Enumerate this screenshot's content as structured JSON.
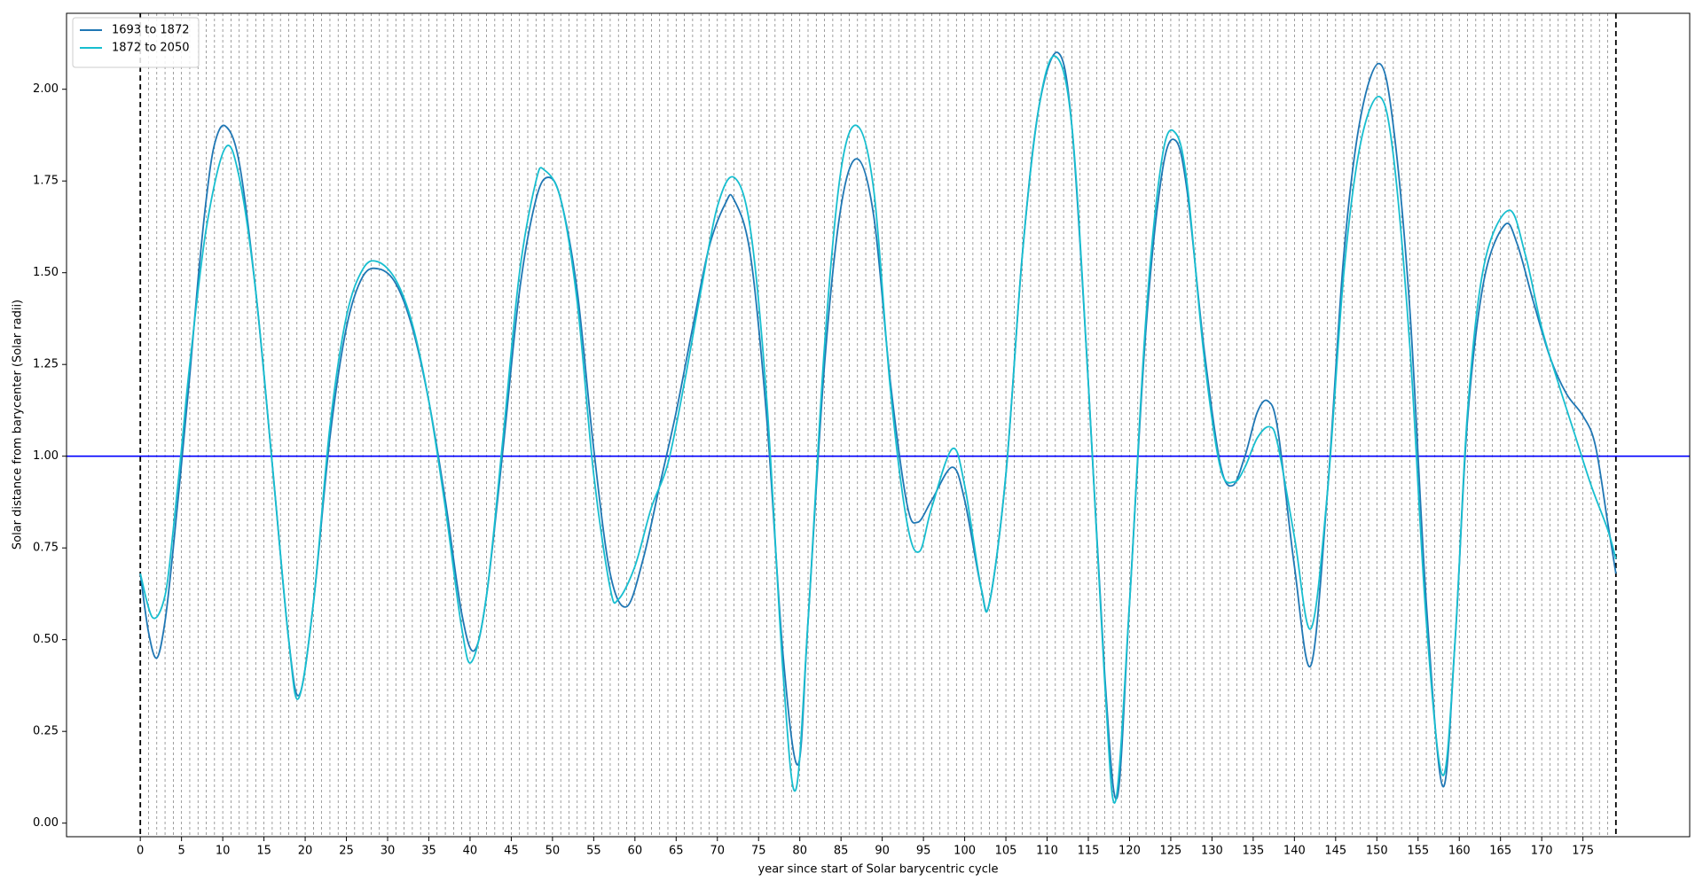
{
  "chart_data": {
    "type": "line",
    "xlabel": "year since start of Solar barycentric cycle",
    "ylabel": "Solar distance from barycenter (Solar radii)",
    "xlim": [
      -8.95,
      187.95
    ],
    "ylim": [
      -0.037,
      2.207
    ],
    "xticks": [
      0,
      5,
      10,
      15,
      20,
      25,
      30,
      35,
      40,
      45,
      50,
      55,
      60,
      65,
      70,
      75,
      80,
      85,
      90,
      95,
      100,
      105,
      110,
      115,
      120,
      125,
      130,
      135,
      140,
      145,
      150,
      155,
      160,
      165,
      170,
      175
    ],
    "yticks": [
      {
        "value": 0,
        "label": "0.00"
      },
      0.25,
      {
        "value": 0.5,
        "label": "0.50"
      },
      0.75,
      {
        "value": 1,
        "label": "1.00"
      },
      1.25,
      {
        "value": 1.5,
        "label": "1.50"
      },
      1.75,
      {
        "value": 2,
        "label": "2.00"
      }
    ],
    "legend": "upper left",
    "hline": 1,
    "hline_color": "#0000ff",
    "cycle_bounds": [
      0,
      179
    ],
    "year_lines": [
      1,
      2,
      3,
      4,
      5,
      6,
      7,
      8,
      9,
      10,
      11,
      12,
      13,
      14,
      15,
      16,
      17,
      18,
      19,
      20,
      21,
      22,
      23,
      24,
      25,
      26,
      27,
      28,
      29,
      30,
      31,
      32,
      33,
      34,
      35,
      36,
      37,
      38,
      39,
      40,
      41,
      42,
      43,
      44,
      45,
      46,
      47,
      48,
      49,
      50,
      51,
      52,
      53,
      54,
      55,
      56,
      57,
      58,
      59,
      60,
      61,
      62,
      63,
      64,
      65,
      66,
      67,
      68,
      69,
      70,
      71,
      72,
      73,
      74,
      75,
      76,
      77,
      78,
      79,
      80,
      81,
      82,
      83,
      84,
      85,
      86,
      87,
      88,
      89,
      90,
      91,
      92,
      93,
      94,
      95,
      96,
      97,
      98,
      99,
      100,
      101,
      102,
      103,
      104,
      105,
      106,
      107,
      108,
      109,
      110,
      111,
      112,
      113,
      114,
      115,
      116,
      117,
      118,
      119,
      120,
      121,
      122,
      123,
      124,
      125,
      126,
      127,
      128,
      129,
      130,
      131,
      132,
      133,
      134,
      135,
      136,
      137,
      138,
      139,
      140,
      141,
      142,
      143,
      144,
      145,
      146,
      147,
      148,
      149,
      150,
      151,
      152,
      153,
      154,
      155,
      156,
      157,
      158,
      159,
      160,
      161,
      162,
      163,
      164,
      165,
      166,
      167,
      168,
      169,
      170,
      171,
      172,
      173,
      174,
      175,
      176,
      177,
      178
    ],
    "series": [
      {
        "name": "1693 to 1872",
        "color": "#1f77b4",
        "x": [
          0,
          1,
          2,
          3,
          4,
          5,
          6,
          7,
          8,
          9,
          10.3,
          12,
          14,
          16,
          18,
          19.3,
          21,
          23,
          25,
          27,
          29,
          31,
          33,
          35,
          37,
          39,
          40.5,
          42,
          44,
          46,
          48,
          49.5,
          51,
          53,
          55,
          57,
          59,
          61,
          63,
          65,
          67,
          69,
          71,
          72,
          74,
          76,
          78,
          79.8,
          81,
          83,
          85,
          87,
          89,
          91,
          93,
          94.3,
          96,
          98.5,
          100,
          102,
          103,
          105,
          107,
          109,
          111.3,
          113,
          115,
          117,
          118.5,
          120,
          122,
          124,
          125.6,
          127,
          129,
          131,
          132.5,
          134,
          135.5,
          136.8,
          138,
          140,
          142,
          144,
          146,
          148,
          150.3,
          152,
          154,
          156,
          158,
          159.5,
          161,
          163,
          165.5,
          167,
          169,
          171,
          173,
          175,
          176.5,
          178,
          179
        ],
        "values": [
          0.68,
          0.52,
          0.45,
          0.55,
          0.75,
          0.98,
          1.22,
          1.48,
          1.7,
          1.85,
          1.9,
          1.8,
          1.45,
          0.98,
          0.5,
          0.35,
          0.6,
          1.05,
          1.35,
          1.49,
          1.51,
          1.47,
          1.35,
          1.15,
          0.88,
          0.57,
          0.47,
          0.62,
          1.02,
          1.45,
          1.7,
          1.76,
          1.7,
          1.45,
          1.02,
          0.68,
          0.59,
          0.72,
          0.92,
          1.12,
          1.35,
          1.57,
          1.69,
          1.7,
          1.55,
          1.1,
          0.45,
          0.16,
          0.55,
          1.25,
          1.68,
          1.81,
          1.65,
          1.2,
          0.87,
          0.82,
          0.88,
          0.97,
          0.88,
          0.64,
          0.6,
          0.95,
          1.55,
          1.95,
          2.1,
          1.9,
          1.2,
          0.4,
          0.07,
          0.6,
          1.35,
          1.78,
          1.86,
          1.72,
          1.3,
          0.98,
          0.92,
          1.0,
          1.12,
          1.15,
          1.07,
          0.7,
          0.43,
          0.9,
          1.55,
          1.92,
          2.07,
          1.9,
          1.4,
          0.6,
          0.1,
          0.5,
          1.1,
          1.48,
          1.63,
          1.58,
          1.42,
          1.27,
          1.17,
          1.11,
          1.03,
          0.82,
          0.68
        ]
      },
      {
        "name": "1872 to 2050",
        "color": "#17becf",
        "x": [
          0,
          1.5,
          3,
          4,
          5,
          6,
          8,
          10.3,
          12,
          14,
          16,
          18,
          19.2,
          21,
          23,
          25,
          27,
          28.8,
          31,
          33,
          35,
          37,
          39,
          40.2,
          42,
          44,
          46,
          48,
          49,
          51,
          53,
          55,
          57,
          58,
          60,
          62,
          64,
          66,
          68,
          70,
          72,
          74,
          76,
          78,
          79.5,
          81,
          83,
          85,
          87,
          89,
          91,
          93,
          94.5,
          96,
          98.5,
          100,
          102,
          103,
          105,
          107,
          109,
          111,
          113,
          115,
          117,
          118.3,
          120,
          122,
          124,
          125.6,
          127,
          129,
          131,
          132.7,
          134,
          135.5,
          137,
          138,
          140,
          142,
          144,
          146,
          148,
          150.3,
          152,
          154,
          156,
          158,
          159.5,
          161,
          163,
          166,
          168,
          170,
          172,
          174,
          176,
          178,
          179
        ],
        "values": [
          0.68,
          0.56,
          0.62,
          0.8,
          1.02,
          1.25,
          1.62,
          1.84,
          1.76,
          1.45,
          0.98,
          0.5,
          0.34,
          0.6,
          1.08,
          1.38,
          1.51,
          1.53,
          1.48,
          1.36,
          1.15,
          0.86,
          0.53,
          0.44,
          0.62,
          1.05,
          1.5,
          1.75,
          1.78,
          1.7,
          1.42,
          0.95,
          0.64,
          0.61,
          0.7,
          0.86,
          0.98,
          1.2,
          1.45,
          1.68,
          1.76,
          1.62,
          1.15,
          0.4,
          0.09,
          0.55,
          1.3,
          1.78,
          1.9,
          1.72,
          1.18,
          0.82,
          0.74,
          0.86,
          1.02,
          0.92,
          0.64,
          0.6,
          0.95,
          1.55,
          1.95,
          2.09,
          1.9,
          1.2,
          0.38,
          0.06,
          0.6,
          1.38,
          1.82,
          1.88,
          1.74,
          1.28,
          0.97,
          0.93,
          0.97,
          1.05,
          1.08,
          1.03,
          0.78,
          0.53,
          0.9,
          1.5,
          1.85,
          1.98,
          1.82,
          1.3,
          0.55,
          0.13,
          0.5,
          1.12,
          1.52,
          1.67,
          1.55,
          1.35,
          1.2,
          1.06,
          0.92,
          0.8,
          0.72
        ]
      }
    ]
  }
}
